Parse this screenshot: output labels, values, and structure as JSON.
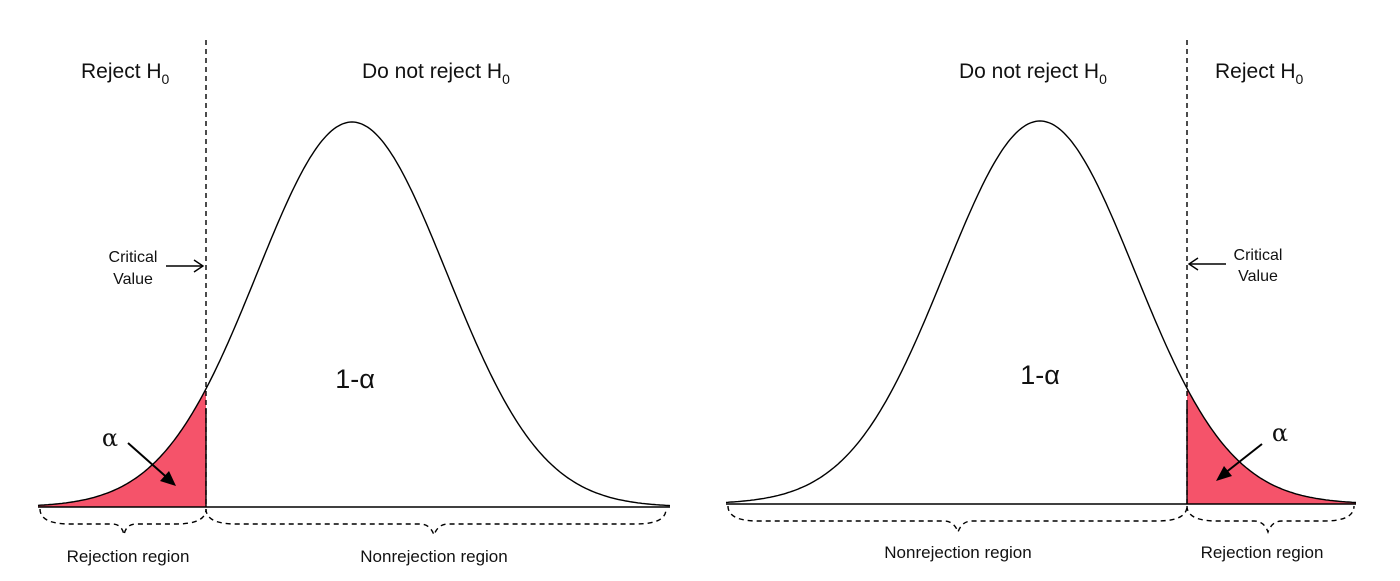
{
  "colors": {
    "rejection_fill": "#f5536a",
    "curve": "#000000",
    "background": "#ffffff"
  },
  "left_panel": {
    "reject_label": "Reject H",
    "reject_sub": "0",
    "do_not_reject_label": "Do not reject H",
    "do_not_reject_sub": "0",
    "critical_value_line1": "Critical",
    "critical_value_line2": "Value",
    "one_minus_alpha": "1-α",
    "alpha": "α",
    "rejection_region": "Rejection region",
    "nonrejection_region": "Nonrejection region"
  },
  "right_panel": {
    "do_not_reject_label": "Do not reject H",
    "do_not_reject_sub": "0",
    "reject_label": "Reject H",
    "reject_sub": "0",
    "critical_value_line1": "Critical",
    "critical_value_line2": "Value",
    "one_minus_alpha": "1-α",
    "alpha": "α",
    "nonrejection_region": "Nonrejection region",
    "rejection_region": "Rejection region"
  }
}
